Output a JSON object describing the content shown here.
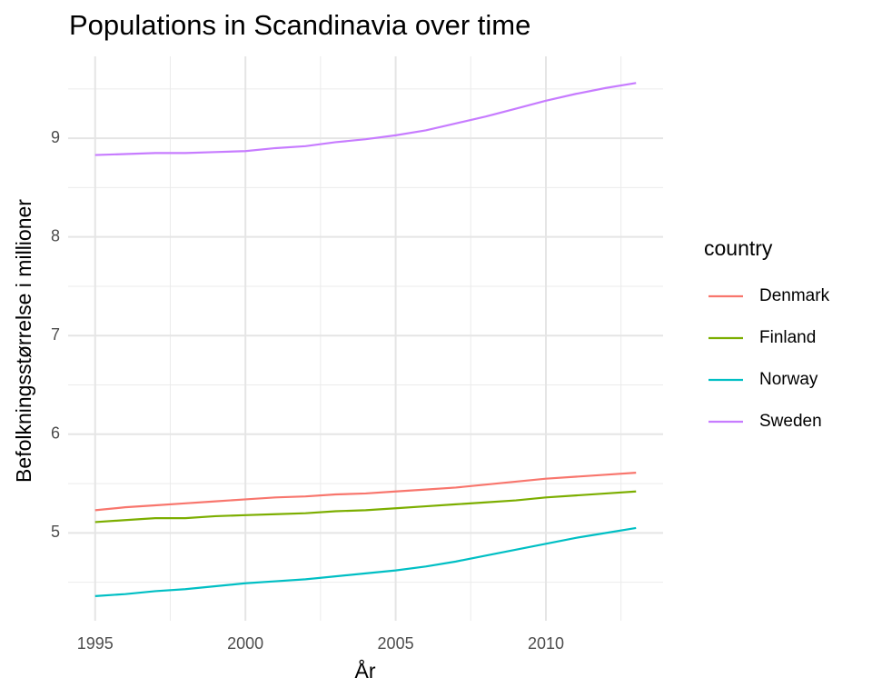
{
  "chart_data": {
    "type": "line",
    "title": "Populations in Scandinavia over time",
    "x_label": "År",
    "y_label": "Befolkningsstørrelse i millioner",
    "legend_title": "country",
    "legend_position": "right",
    "grid": true,
    "x": [
      1995,
      1996,
      1997,
      1998,
      1999,
      2000,
      2001,
      2002,
      2003,
      2004,
      2005,
      2006,
      2007,
      2008,
      2009,
      2010,
      2011,
      2012,
      2013
    ],
    "series": [
      {
        "name": "Denmark",
        "color": "#F8766D",
        "values": [
          5.23,
          5.26,
          5.28,
          5.3,
          5.32,
          5.34,
          5.36,
          5.37,
          5.39,
          5.4,
          5.42,
          5.44,
          5.46,
          5.49,
          5.52,
          5.55,
          5.57,
          5.59,
          5.61
        ]
      },
      {
        "name": "Finland",
        "color": "#7CAE00",
        "values": [
          5.11,
          5.13,
          5.15,
          5.15,
          5.17,
          5.18,
          5.19,
          5.2,
          5.22,
          5.23,
          5.25,
          5.27,
          5.29,
          5.31,
          5.33,
          5.36,
          5.38,
          5.4,
          5.42
        ]
      },
      {
        "name": "Norway",
        "color": "#00BFC4",
        "values": [
          4.36,
          4.38,
          4.41,
          4.43,
          4.46,
          4.49,
          4.51,
          4.53,
          4.56,
          4.59,
          4.62,
          4.66,
          4.71,
          4.77,
          4.83,
          4.89,
          4.95,
          5.0,
          5.05
        ]
      },
      {
        "name": "Sweden",
        "color": "#C77CFF",
        "values": [
          8.83,
          8.84,
          8.85,
          8.85,
          8.86,
          8.87,
          8.9,
          8.92,
          8.96,
          8.99,
          9.03,
          9.08,
          9.15,
          9.22,
          9.3,
          9.38,
          9.45,
          9.51,
          9.56
        ]
      }
    ],
    "xlim": [
      1994.1,
      2013.9
    ],
    "xticks": [
      1995,
      2000,
      2005,
      2010
    ],
    "ylim": [
      4.11,
      9.83
    ],
    "yticks": [
      5,
      6,
      7,
      8,
      9
    ]
  }
}
